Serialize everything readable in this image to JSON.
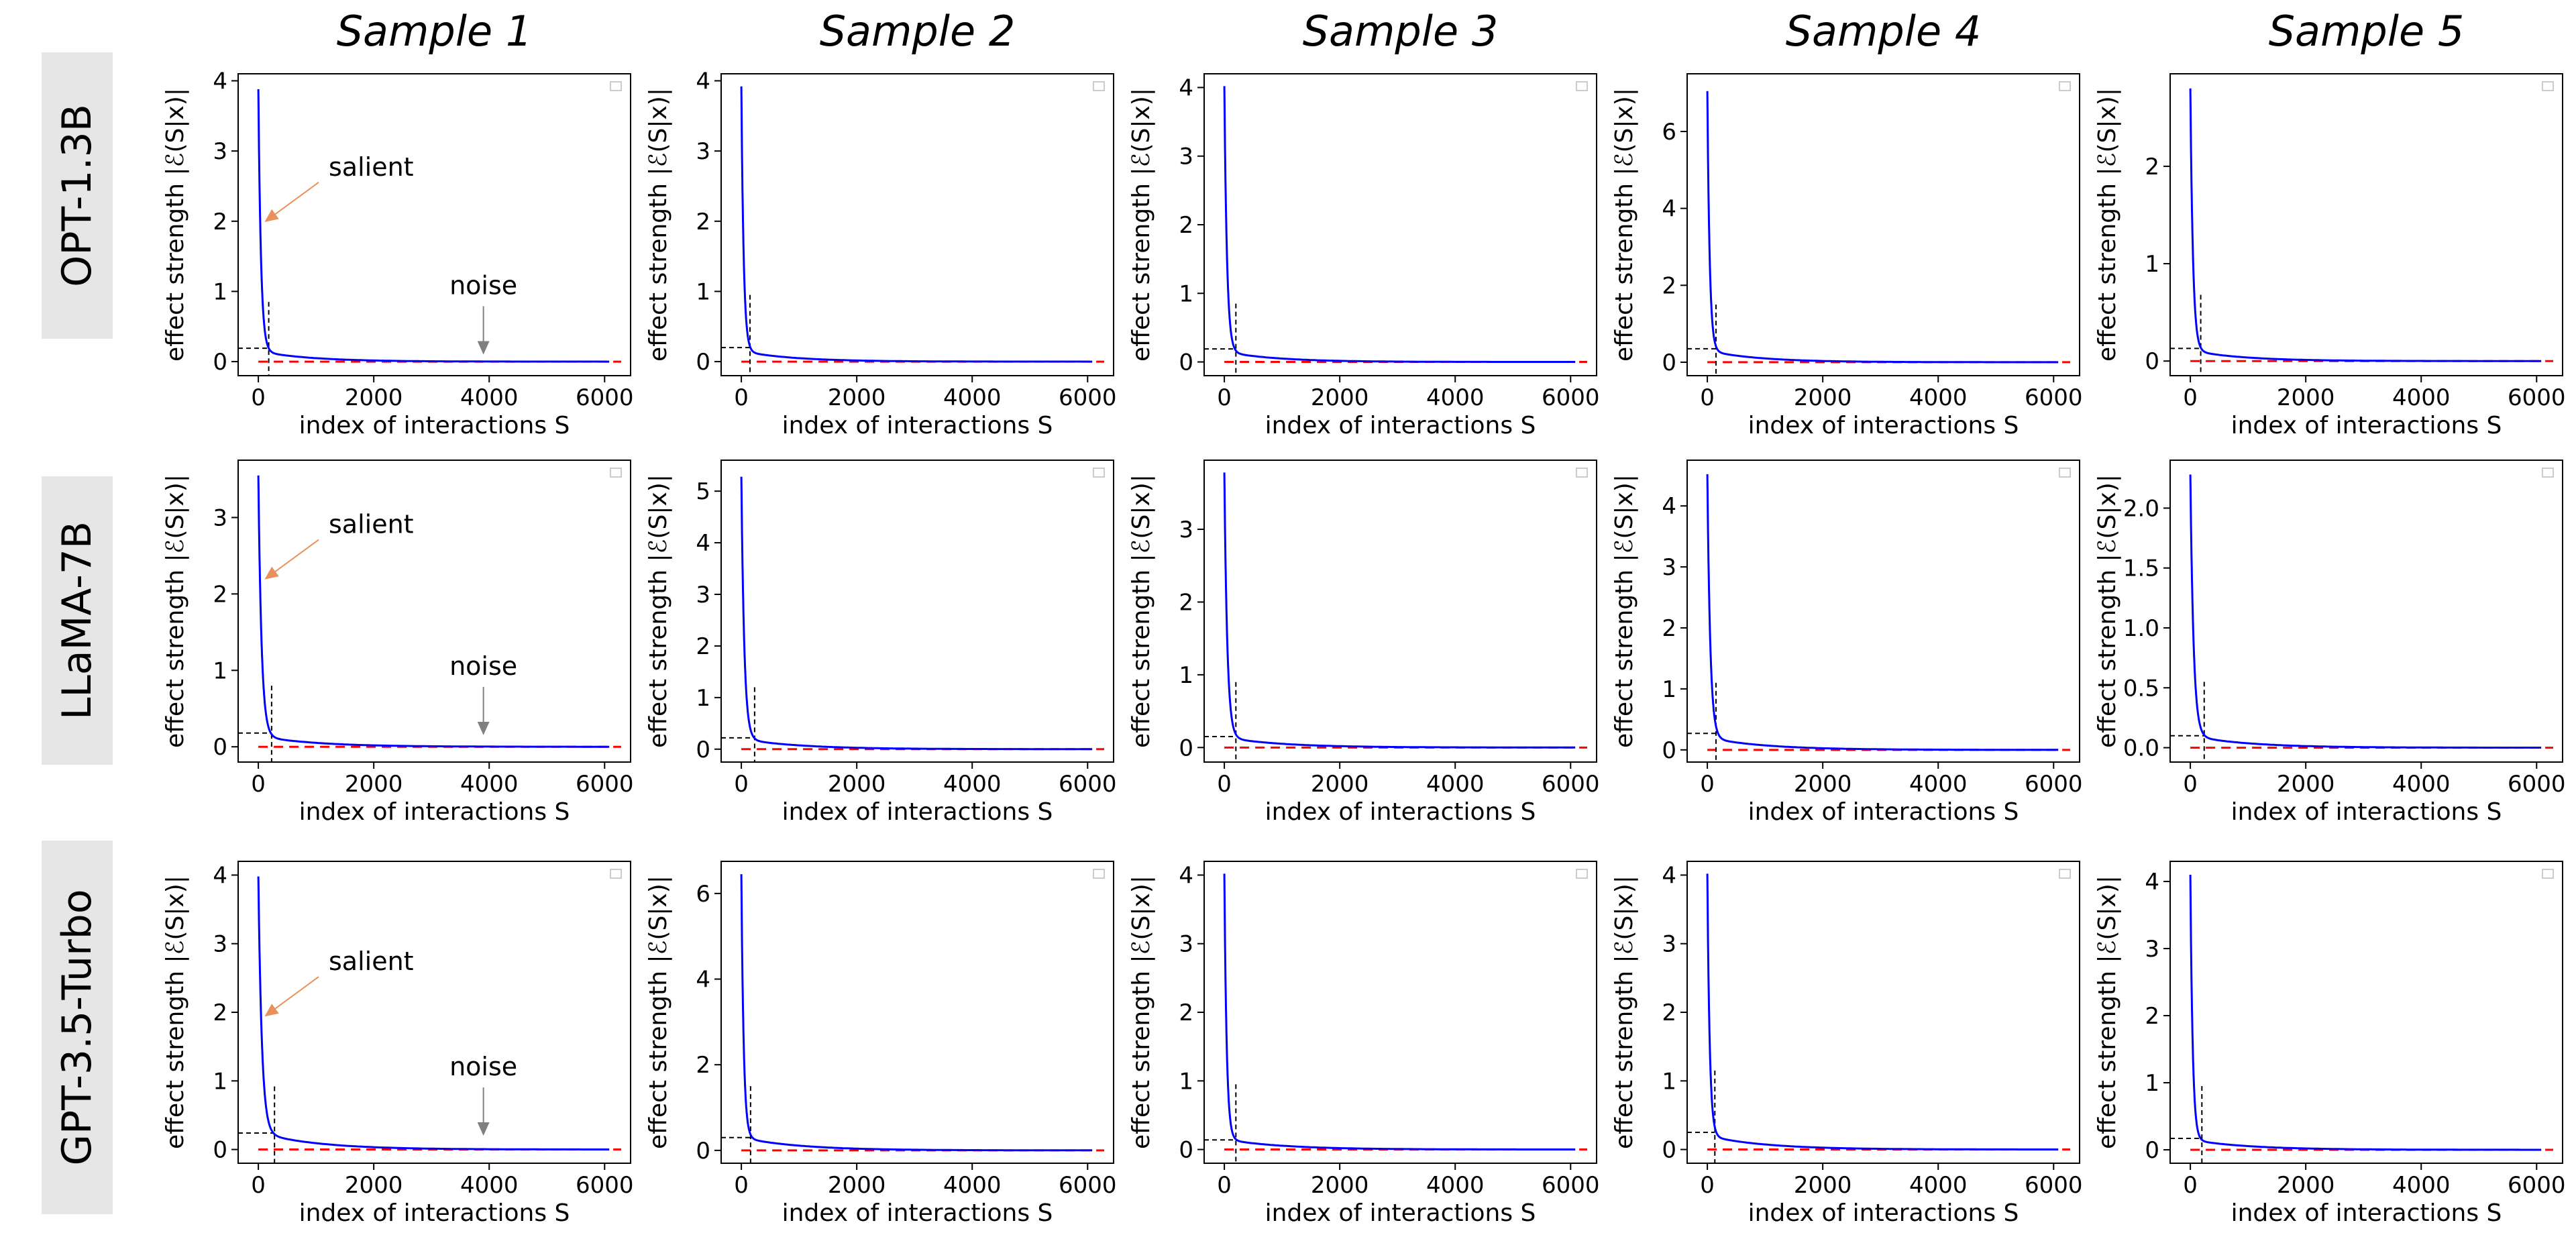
{
  "column_titles": [
    "Sample 1",
    "Sample 2",
    "Sample 3",
    "Sample 4",
    "Sample 5"
  ],
  "row_labels": [
    "OPT-1.3B",
    "LLaMA-7B",
    "GPT-3.5-Turbo"
  ],
  "colors": {
    "curve": "#0000ff",
    "threshold_line": "#ff0000",
    "marker_line": "#000000",
    "salient_arrow": "#e8915c",
    "noise_arrow": "#808080",
    "row_label_bg": "#e6e6e6"
  },
  "chart_data": [
    {
      "type": "line",
      "row": "OPT-1.3B",
      "column": "Sample 1",
      "xlabel": "index of interactions S",
      "ylabel": "effect strength |ℰ(S|x)|",
      "xlim": [
        -350,
        6450
      ],
      "ylim": [
        -0.2,
        4.1
      ],
      "xticks": [
        0,
        2000,
        4000,
        6000
      ],
      "yticks": [
        0,
        1,
        2,
        3,
        4
      ],
      "ytick_labels": [
        "0",
        "1",
        "2",
        "3",
        "4"
      ],
      "peak": 3.88,
      "decay": 45,
      "tail": 0.15,
      "tail_decay": 900,
      "cut_x": 180,
      "cut_y": 0.19,
      "cut_top": 0.85,
      "grid": false,
      "legend": "top-right (empty)",
      "annotations": [
        {
          "text": "salient",
          "target_x": 80,
          "target_y": 2.0
        },
        {
          "text": "noise",
          "target_x": 3900,
          "target_y": 0.12
        }
      ]
    },
    {
      "type": "line",
      "row": "OPT-1.3B",
      "column": "Sample 2",
      "xlabel": "index of interactions S",
      "ylabel": "effect strength |ℰ(S|x)|",
      "xlim": [
        -350,
        6450
      ],
      "ylim": [
        -0.2,
        4.1
      ],
      "xticks": [
        0,
        2000,
        4000,
        6000
      ],
      "yticks": [
        0,
        1,
        2,
        3,
        4
      ],
      "ytick_labels": [
        "0",
        "1",
        "2",
        "3",
        "4"
      ],
      "peak": 3.92,
      "decay": 40,
      "tail": 0.15,
      "tail_decay": 900,
      "cut_x": 150,
      "cut_y": 0.2,
      "cut_top": 0.95,
      "grid": false,
      "legend": "top-right (empty)"
    },
    {
      "type": "line",
      "row": "OPT-1.3B",
      "column": "Sample 3",
      "xlabel": "index of interactions S",
      "ylabel": "effect strength |ℰ(S|x)|",
      "xlim": [
        -350,
        6450
      ],
      "ylim": [
        -0.2,
        4.2
      ],
      "xticks": [
        0,
        2000,
        4000,
        6000
      ],
      "yticks": [
        0,
        1,
        2,
        3,
        4
      ],
      "ytick_labels": [
        "0",
        "1",
        "2",
        "3",
        "4"
      ],
      "peak": 4.02,
      "decay": 45,
      "tail": 0.15,
      "tail_decay": 900,
      "cut_x": 200,
      "cut_y": 0.19,
      "cut_top": 0.85,
      "grid": false,
      "legend": "top-right (empty)"
    },
    {
      "type": "line",
      "row": "OPT-1.3B",
      "column": "Sample 4",
      "xlabel": "index of interactions S",
      "ylabel": "effect strength |ℰ(S|x)|",
      "xlim": [
        -350,
        6450
      ],
      "ylim": [
        -0.35,
        7.5
      ],
      "xticks": [
        0,
        2000,
        4000,
        6000
      ],
      "yticks": [
        0,
        2,
        4,
        6
      ],
      "ytick_labels": [
        "0",
        "2",
        "4",
        "6"
      ],
      "peak": 7.05,
      "decay": 40,
      "tail": 0.3,
      "tail_decay": 900,
      "cut_x": 150,
      "cut_y": 0.35,
      "cut_top": 1.5,
      "grid": false,
      "legend": "top-right (empty)"
    },
    {
      "type": "line",
      "row": "OPT-1.3B",
      "column": "Sample 5",
      "xlabel": "index of interactions S",
      "ylabel": "effect strength |ℰ(S|x)|",
      "xlim": [
        -350,
        6450
      ],
      "ylim": [
        -0.15,
        2.95
      ],
      "xticks": [
        0,
        2000,
        4000,
        6000
      ],
      "yticks": [
        0,
        1,
        2
      ],
      "ytick_labels": [
        "0",
        "1",
        "2"
      ],
      "peak": 2.8,
      "decay": 45,
      "tail": 0.11,
      "tail_decay": 900,
      "cut_x": 180,
      "cut_y": 0.13,
      "cut_top": 0.68,
      "grid": false,
      "legend": "top-right (empty)"
    },
    {
      "type": "line",
      "row": "LLaMA-7B",
      "column": "Sample 1",
      "xlabel": "index of interactions S",
      "ylabel": "effect strength |ℰ(S|x)|",
      "xlim": [
        -350,
        6450
      ],
      "ylim": [
        -0.2,
        3.75
      ],
      "xticks": [
        0,
        2000,
        4000,
        6000
      ],
      "yticks": [
        0,
        1,
        2,
        3
      ],
      "ytick_labels": [
        "0",
        "1",
        "2",
        "3"
      ],
      "peak": 3.55,
      "decay": 55,
      "tail": 0.14,
      "tail_decay": 1000,
      "cut_x": 230,
      "cut_y": 0.18,
      "cut_top": 0.8,
      "grid": false,
      "legend": "top-right (empty)",
      "annotations": [
        {
          "text": "salient",
          "target_x": 80,
          "target_y": 2.2
        },
        {
          "text": "noise",
          "target_x": 3900,
          "target_y": 0.17
        }
      ]
    },
    {
      "type": "line",
      "row": "LLaMA-7B",
      "column": "Sample 2",
      "xlabel": "index of interactions S",
      "ylabel": "effect strength |ℰ(S|x)|",
      "xlim": [
        -350,
        6450
      ],
      "ylim": [
        -0.25,
        5.6
      ],
      "xticks": [
        0,
        2000,
        4000,
        6000
      ],
      "yticks": [
        0,
        1,
        2,
        3,
        4,
        5
      ],
      "ytick_labels": [
        "0",
        "1",
        "2",
        "3",
        "4",
        "5"
      ],
      "peak": 5.28,
      "decay": 50,
      "tail": 0.2,
      "tail_decay": 1000,
      "cut_x": 230,
      "cut_y": 0.22,
      "cut_top": 1.2,
      "grid": false,
      "legend": "top-right (empty)"
    },
    {
      "type": "line",
      "row": "LLaMA-7B",
      "column": "Sample 3",
      "xlabel": "index of interactions S",
      "ylabel": "effect strength |ℰ(S|x)|",
      "xlim": [
        -350,
        6450
      ],
      "ylim": [
        -0.2,
        3.95
      ],
      "xticks": [
        0,
        2000,
        4000,
        6000
      ],
      "yticks": [
        0,
        1,
        2,
        3
      ],
      "ytick_labels": [
        "0",
        "1",
        "2",
        "3"
      ],
      "peak": 3.78,
      "decay": 50,
      "tail": 0.14,
      "tail_decay": 1000,
      "cut_x": 200,
      "cut_y": 0.15,
      "cut_top": 0.9,
      "grid": false,
      "legend": "top-right (empty)"
    },
    {
      "type": "line",
      "row": "LLaMA-7B",
      "column": "Sample 4",
      "xlabel": "index of interactions S",
      "ylabel": "effect strength |ℰ(S|x)|",
      "xlim": [
        -350,
        6450
      ],
      "ylim": [
        -0.2,
        4.75
      ],
      "xticks": [
        0,
        2000,
        4000,
        6000
      ],
      "yticks": [
        0,
        1,
        2,
        3,
        4
      ],
      "ytick_labels": [
        "0",
        "1",
        "2",
        "3",
        "4"
      ],
      "peak": 4.52,
      "decay": 50,
      "tail": 0.2,
      "tail_decay": 1000,
      "cut_x": 150,
      "cut_y": 0.27,
      "cut_top": 1.1,
      "grid": false,
      "legend": "top-right (empty)"
    },
    {
      "type": "line",
      "row": "LLaMA-7B",
      "column": "Sample 5",
      "xlabel": "index of interactions S",
      "ylabel": "effect strength |ℰ(S|x)|",
      "xlim": [
        -350,
        6450
      ],
      "ylim": [
        -0.12,
        2.4
      ],
      "xticks": [
        0,
        2000,
        4000,
        6000
      ],
      "yticks": [
        0,
        0.5,
        1,
        1.5,
        2
      ],
      "ytick_labels": [
        "0.0",
        "0.5",
        "1.0",
        "1.5",
        "2.0"
      ],
      "peak": 2.28,
      "decay": 55,
      "tail": 0.1,
      "tail_decay": 1000,
      "cut_x": 240,
      "cut_y": 0.1,
      "cut_top": 0.55,
      "grid": false,
      "legend": "top-right (empty)"
    },
    {
      "type": "line",
      "row": "GPT-3.5-Turbo",
      "column": "Sample 1",
      "xlabel": "index of interactions S",
      "ylabel": "effect strength |ℰ(S|x)|",
      "xlim": [
        -350,
        6450
      ],
      "ylim": [
        -0.2,
        4.2
      ],
      "xticks": [
        0,
        2000,
        4000,
        6000
      ],
      "yticks": [
        0,
        1,
        2,
        3,
        4
      ],
      "ytick_labels": [
        "0",
        "1",
        "2",
        "3",
        "4"
      ],
      "peak": 3.98,
      "decay": 60,
      "tail": 0.25,
      "tail_decay": 1000,
      "cut_x": 280,
      "cut_y": 0.24,
      "cut_top": 0.92,
      "grid": false,
      "legend": "top-right (empty)",
      "annotations": [
        {
          "text": "salient",
          "target_x": 80,
          "target_y": 1.95
        },
        {
          "text": "noise",
          "target_x": 3900,
          "target_y": 0.22
        }
      ]
    },
    {
      "type": "line",
      "row": "GPT-3.5-Turbo",
      "column": "Sample 2",
      "xlabel": "index of interactions S",
      "ylabel": "effect strength |ℰ(S|x)|",
      "xlim": [
        -350,
        6450
      ],
      "ylim": [
        -0.3,
        6.75
      ],
      "xticks": [
        0,
        2000,
        4000,
        6000
      ],
      "yticks": [
        0,
        2,
        4,
        6
      ],
      "ytick_labels": [
        "0",
        "2",
        "4",
        "6"
      ],
      "peak": 6.45,
      "decay": 40,
      "tail": 0.3,
      "tail_decay": 1000,
      "cut_x": 160,
      "cut_y": 0.3,
      "cut_top": 1.5,
      "grid": false,
      "legend": "top-right (empty)"
    },
    {
      "type": "line",
      "row": "GPT-3.5-Turbo",
      "column": "Sample 3",
      "xlabel": "index of interactions S",
      "ylabel": "effect strength |ℰ(S|x)|",
      "xlim": [
        -350,
        6450
      ],
      "ylim": [
        -0.2,
        4.2
      ],
      "xticks": [
        0,
        2000,
        4000,
        6000
      ],
      "yticks": [
        0,
        1,
        2,
        3,
        4
      ],
      "ytick_labels": [
        "0",
        "1",
        "2",
        "3",
        "4"
      ],
      "peak": 4.02,
      "decay": 40,
      "tail": 0.15,
      "tail_decay": 1000,
      "cut_x": 200,
      "cut_y": 0.14,
      "cut_top": 0.95,
      "grid": false,
      "legend": "top-right (empty)"
    },
    {
      "type": "line",
      "row": "GPT-3.5-Turbo",
      "column": "Sample 4",
      "xlabel": "index of interactions S",
      "ylabel": "effect strength |ℰ(S|x)|",
      "xlim": [
        -350,
        6450
      ],
      "ylim": [
        -0.2,
        4.2
      ],
      "xticks": [
        0,
        2000,
        4000,
        6000
      ],
      "yticks": [
        0,
        1,
        2,
        3,
        4
      ],
      "ytick_labels": [
        "0",
        "1",
        "2",
        "3",
        "4"
      ],
      "peak": 4.02,
      "decay": 40,
      "tail": 0.2,
      "tail_decay": 1000,
      "cut_x": 130,
      "cut_y": 0.25,
      "cut_top": 1.15,
      "grid": false,
      "legend": "top-right (empty)"
    },
    {
      "type": "line",
      "row": "GPT-3.5-Turbo",
      "column": "Sample 5",
      "xlabel": "index of interactions S",
      "ylabel": "effect strength |ℰ(S|x)|",
      "xlim": [
        -350,
        6450
      ],
      "ylim": [
        -0.2,
        4.3
      ],
      "xticks": [
        0,
        2000,
        4000,
        6000
      ],
      "yticks": [
        0,
        1,
        2,
        3,
        4
      ],
      "ytick_labels": [
        "0",
        "1",
        "2",
        "3",
        "4"
      ],
      "peak": 4.1,
      "decay": 40,
      "tail": 0.15,
      "tail_decay": 1000,
      "cut_x": 200,
      "cut_y": 0.17,
      "cut_top": 0.95,
      "grid": false,
      "legend": "top-right (empty)"
    }
  ]
}
